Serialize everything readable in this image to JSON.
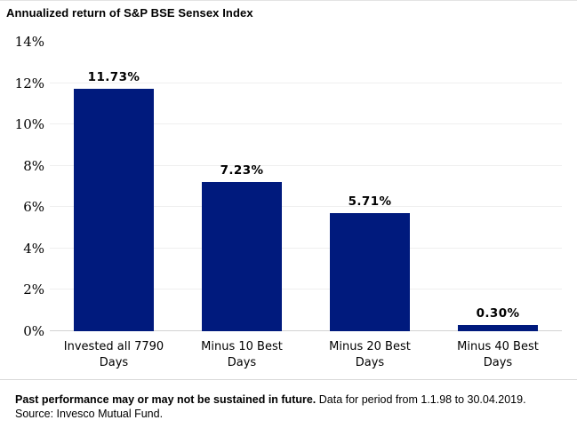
{
  "title": "Annualized return of S&P BSE Sensex Index",
  "chart_data": {
    "type": "bar",
    "title": "Annualized return of S&P BSE Sensex Index",
    "categories": [
      "Invested all 7790\nDays",
      "Minus 10 Best\nDays",
      "Minus 20 Best\nDays",
      "Minus 40 Best\nDays"
    ],
    "values": [
      11.73,
      7.23,
      5.71,
      0.3
    ],
    "value_labels": [
      "11.73%",
      "7.23%",
      "5.71%",
      "0.30%"
    ],
    "xlabel": "",
    "ylabel": "",
    "ylim": [
      0,
      14
    ],
    "ytick_step": 2,
    "yticks": [
      "14%",
      "12%",
      "10%",
      "8%",
      "6%",
      "4%",
      "2%",
      "0%"
    ],
    "bar_color": "#001a7d",
    "grid": true,
    "legend_position": "none"
  },
  "footer": {
    "disclaimer_bold": "Past performance may or may not be sustained in future.",
    "disclaimer_regular": " Data for period from 1.1.98 to 30.04.2019.",
    "source": "Source: Invesco Mutual Fund."
  }
}
